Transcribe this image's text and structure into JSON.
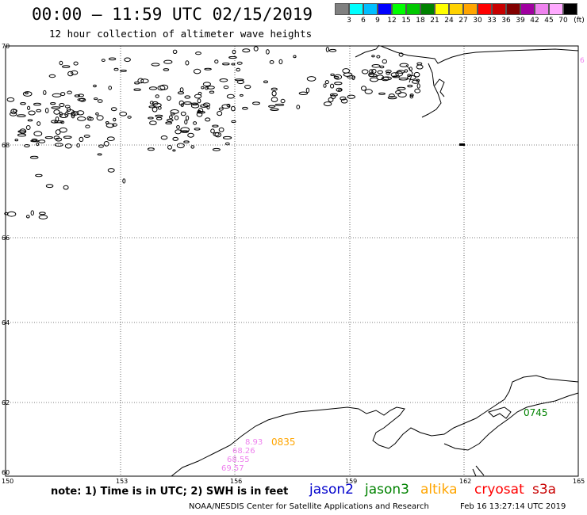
{
  "header": {
    "title": "00:00 — 11:59 UTC 02/15/2019",
    "subtitle": "12 hour collection of altimeter wave heights"
  },
  "legend": {
    "colors": [
      "#808080",
      "#00ffff",
      "#00bfff",
      "#0000ff",
      "#00ff00",
      "#00c800",
      "#008200",
      "#ffff00",
      "#ffd200",
      "#ffa500",
      "#ff0000",
      "#c80000",
      "#820000",
      "#a000a0",
      "#ee82ee",
      "#ffaaff",
      "#000000"
    ],
    "labels": [
      "3",
      "6",
      "9",
      "12",
      "15",
      "18",
      "21",
      "24",
      "27",
      "30",
      "33",
      "36",
      "39",
      "42",
      "45",
      "70"
    ],
    "unit": "(ft)"
  },
  "map": {
    "lon_labels": [
      "150",
      "153",
      "156",
      "159",
      "162",
      "165"
    ],
    "lat_labels": [
      "70",
      "68",
      "66",
      "64",
      "62",
      "60"
    ],
    "corner_marker": "6",
    "wave_labels": {
      "track_altika_time": "0835",
      "track_jason3_time": "0745",
      "swh_values": [
        "8.93",
        "68.26",
        "68.55",
        "69.57"
      ]
    }
  },
  "footer": {
    "note": "note: 1) Time is in UTC; 2) SWH is in feet",
    "satellites": [
      {
        "name": "jason2",
        "color": "#0000cc"
      },
      {
        "name": "jason3",
        "color": "#008200"
      },
      {
        "name": "altika",
        "color": "#ffa500"
      },
      {
        "name": "cryosat",
        "color": "#ff0000"
      },
      {
        "name": "s3a",
        "color": "#c80000"
      }
    ],
    "credit": "NOAA/NESDIS Center for Satellite Applications and Research",
    "timestamp": "Feb 16 13:27:14 UTC 2019"
  }
}
